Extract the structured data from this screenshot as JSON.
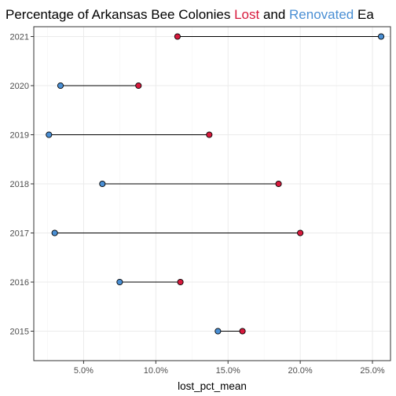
{
  "chart_data": {
    "type": "dumbbell",
    "title": {
      "segments": [
        {
          "text": "Percentage of Arkansas Bee Colonies ",
          "color": "#000000"
        },
        {
          "text": "Lost",
          "color": "#d7193c"
        },
        {
          "text": " and ",
          "color": "#000000"
        },
        {
          "text": "Renovated",
          "color": "#4a8fd4"
        },
        {
          "text": " Ea",
          "color": "#000000"
        }
      ]
    },
    "xlabel": "lost_pct_mean",
    "ylabel": "",
    "xlim": [
      0.0155,
      0.2625
    ],
    "x_ticks": [
      0.05,
      0.1,
      0.15,
      0.2,
      0.25
    ],
    "x_tick_labels": [
      "5.0%",
      "10.0%",
      "15.0%",
      "20.0%",
      "25.0%"
    ],
    "categories": [
      "2015",
      "2016",
      "2017",
      "2018",
      "2019",
      "2020",
      "2021"
    ],
    "series": [
      {
        "key": "lost",
        "color": "#d7193c",
        "values": [
          0.16,
          0.117,
          0.2,
          0.185,
          0.137,
          0.088,
          0.115
        ]
      },
      {
        "key": "renovated",
        "color": "#4a8fd4",
        "values": [
          0.143,
          0.075,
          0.03,
          0.063,
          0.026,
          0.034,
          0.256
        ]
      }
    ],
    "grid": true,
    "legend": "none"
  }
}
